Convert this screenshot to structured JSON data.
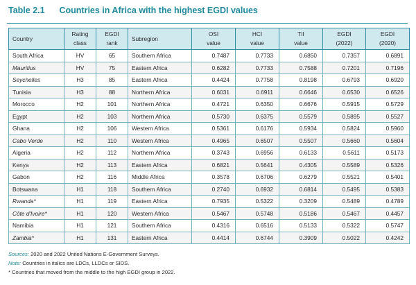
{
  "caption": {
    "number": "Table 2.1",
    "title": "Countries in Africa with the highest EGDI values"
  },
  "table": {
    "headers": [
      [
        "Country"
      ],
      [
        "Rating",
        "class"
      ],
      [
        "EGDI",
        "rank"
      ],
      [
        "Subregion"
      ],
      [
        "OSI",
        "value"
      ],
      [
        "HCI",
        "value"
      ],
      [
        "TII",
        "value"
      ],
      [
        "EGDI",
        "(2022)"
      ],
      [
        "EGDI",
        "(2020)"
      ]
    ],
    "rows": [
      {
        "country": "South Africa",
        "italic": false,
        "rating": "HV",
        "rank": "65",
        "subregion": "Southern Africa",
        "osi": "0.7487",
        "hci": "0.7733",
        "tii": "0.6850",
        "egdi2022": "0.7357",
        "egdi2020": "0.6891"
      },
      {
        "country": "Mauritius",
        "italic": true,
        "rating": "HV",
        "rank": "75",
        "subregion": "Eastern Africa",
        "osi": "0.6282",
        "hci": "0.7733",
        "tii": "0.7588",
        "egdi2022": "0.7201",
        "egdi2020": "0.7196"
      },
      {
        "country": "Seychelles",
        "italic": true,
        "rating": "H3",
        "rank": "85",
        "subregion": "Eastern Africa",
        "osi": "0.4424",
        "hci": "0.7758",
        "tii": "0.8198",
        "egdi2022": "0.6793",
        "egdi2020": "0.6920"
      },
      {
        "country": "Tunisia",
        "italic": false,
        "rating": "H3",
        "rank": "88",
        "subregion": "Northern Africa",
        "osi": "0.6031",
        "hci": "0.6911",
        "tii": "0.6646",
        "egdi2022": "0.6530",
        "egdi2020": "0.6526"
      },
      {
        "country": "Morocco",
        "italic": false,
        "rating": "H2",
        "rank": "101",
        "subregion": "Northern Africa",
        "osi": "0.4721",
        "hci": "0.6350",
        "tii": "0.6676",
        "egdi2022": "0.5915",
        "egdi2020": "0.5729"
      },
      {
        "country": "Egypt",
        "italic": false,
        "rating": "H2",
        "rank": "103",
        "subregion": "Northern Africa",
        "osi": "0.5730",
        "hci": "0.6375",
        "tii": "0.5579",
        "egdi2022": "0.5895",
        "egdi2020": "0.5527"
      },
      {
        "country": "Ghana",
        "italic": false,
        "rating": "H2",
        "rank": "106",
        "subregion": "Western Africa",
        "osi": "0.5361",
        "hci": "0.6176",
        "tii": "0.5934",
        "egdi2022": "0.5824",
        "egdi2020": "0.5960"
      },
      {
        "country": "Cabo Verde",
        "italic": true,
        "rating": "H2",
        "rank": "110",
        "subregion": "Western Africa",
        "osi": "0.4965",
        "hci": "0.6507",
        "tii": "0.5507",
        "egdi2022": "0.5660",
        "egdi2020": "0.5604"
      },
      {
        "country": "Algeria",
        "italic": false,
        "rating": "H2",
        "rank": "112",
        "subregion": "Northern Africa",
        "osi": "0.3743",
        "hci": "0.6956",
        "tii": "0.6133",
        "egdi2022": "0.5611",
        "egdi2020": "0.5173"
      },
      {
        "country": "Kenya",
        "italic": false,
        "rating": "H2",
        "rank": "113",
        "subregion": "Eastern Africa",
        "osi": "0.6821",
        "hci": "0.5641",
        "tii": "0.4305",
        "egdi2022": "0.5589",
        "egdi2020": "0.5326"
      },
      {
        "country": "Gabon",
        "italic": false,
        "rating": "H2",
        "rank": "116",
        "subregion": "Middle Africa",
        "osi": "0.3578",
        "hci": "0.6706",
        "tii": "0.6279",
        "egdi2022": "0.5521",
        "egdi2020": "0.5401"
      },
      {
        "country": "Botswana",
        "italic": false,
        "rating": "H1",
        "rank": "118",
        "subregion": "Southern Africa",
        "osi": "0.2740",
        "hci": "0.6932",
        "tii": "0.6814",
        "egdi2022": "0.5495",
        "egdi2020": "0.5383"
      },
      {
        "country": "Rwanda*",
        "italic": true,
        "rating": "H1",
        "rank": "119",
        "subregion": "Eastern Africa",
        "osi": "0.7935",
        "hci": "0.5322",
        "tii": "0.3209",
        "egdi2022": "0.5489",
        "egdi2020": "0.4789"
      },
      {
        "country": "Côte d'Ivoire*",
        "italic": true,
        "rating": "H1",
        "rank": "120",
        "subregion": "Western Africa",
        "osi": "0.5467",
        "hci": "0.5748",
        "tii": "0.5186",
        "egdi2022": "0.5467",
        "egdi2020": "0.4457"
      },
      {
        "country": "Namibia",
        "italic": false,
        "rating": "H1",
        "rank": "121",
        "subregion": "Southern Africa",
        "osi": "0.4316",
        "hci": "0.6516",
        "tii": "0.5133",
        "egdi2022": "0.5322",
        "egdi2020": "0.5747"
      },
      {
        "country": "Zambia*",
        "italic": true,
        "rating": "H1",
        "rank": "131",
        "subregion": "Eastern Africa",
        "osi": "0.4414",
        "hci": "0.6744",
        "tii": "0.3909",
        "egdi2022": "0.5022",
        "egdi2020": "0.4242"
      }
    ]
  },
  "notes": {
    "sources_label": "Sources:",
    "sources_text": " 2020 and 2022 United Nations E-Government Surveys.",
    "note_label": "Note:",
    "note_text": " Countries in italics are LDCs, LLDCs or SIDS.",
    "asterisk_text": "* Countries that moved from the middle to the high EGDI group in 2022."
  },
  "colors": {
    "accent": "#1f8a9c",
    "header_fill": "#cfe9ef",
    "border": "#6fb3c0",
    "zebra": "#f4f4f4"
  }
}
